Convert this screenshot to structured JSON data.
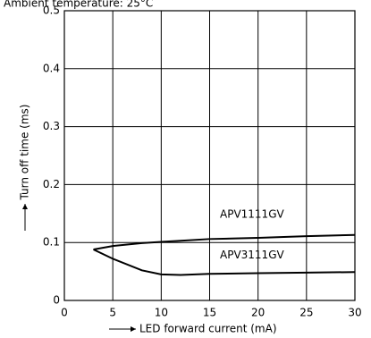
{
  "chart_data": {
    "type": "line",
    "title": "Ambient temperature: 25°C",
    "x_label": "LED forward current (mA)",
    "y_label": "Turn off time (ms)",
    "x": [
      3,
      5,
      8,
      10,
      12,
      15,
      20,
      25,
      30
    ],
    "series": [
      {
        "name": "APV1111GV",
        "color": "#000000",
        "values": [
          0.088,
          0.094,
          0.099,
          0.101,
          0.103,
          0.106,
          0.108,
          0.111,
          0.113
        ]
      },
      {
        "name": "APV3111GV",
        "color": "#000000",
        "values": [
          0.088,
          0.072,
          0.052,
          0.045,
          0.044,
          0.046,
          0.047,
          0.048,
          0.049
        ]
      }
    ],
    "xlim": [
      0,
      30
    ],
    "xticks": [
      0,
      5,
      10,
      15,
      20,
      25,
      30
    ],
    "ylim": [
      0,
      0.5
    ],
    "yticks": [
      0,
      0.1,
      0.2,
      0.3,
      0.4,
      0.5
    ],
    "grid": true
  }
}
